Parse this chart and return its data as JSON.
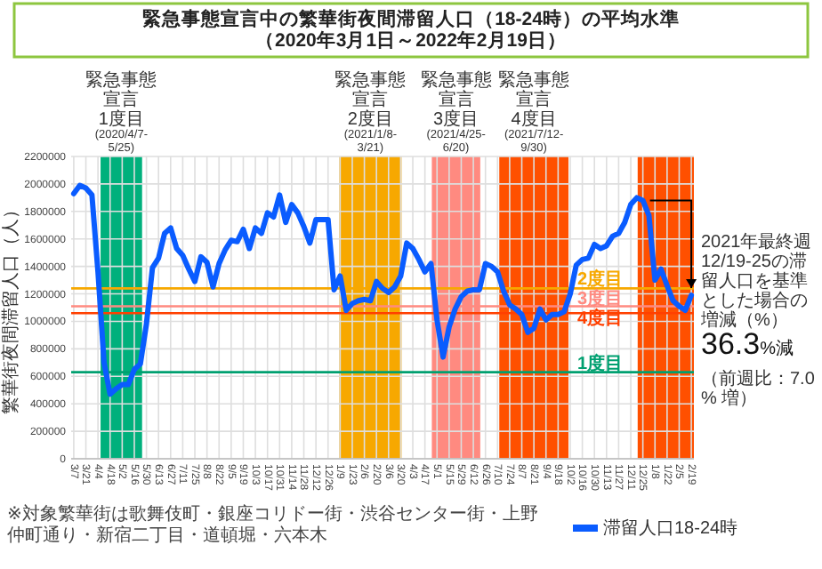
{
  "chart_data": {
    "type": "line",
    "title": "緊急事態宣言中の繁華街夜間滞留人口（18-24時）の平均水準（2020年3月1日～2022年2月19日）",
    "ylabel": "繁華街夜間滞留人口（人）",
    "x": [
      "2020-03-07",
      "2020-03-14",
      "2020-03-21",
      "2020-03-28",
      "2020-04-04",
      "2020-04-11",
      "2020-04-18",
      "2020-04-25",
      "2020-05-02",
      "2020-05-09",
      "2020-05-16",
      "2020-05-23",
      "2020-05-30",
      "2020-06-06",
      "2020-06-13",
      "2020-06-20",
      "2020-06-27",
      "2020-07-04",
      "2020-07-11",
      "2020-07-18",
      "2020-07-25",
      "2020-08-01",
      "2020-08-08",
      "2020-08-15",
      "2020-08-22",
      "2020-08-29",
      "2020-09-05",
      "2020-09-12",
      "2020-09-19",
      "2020-09-26",
      "2020-10-03",
      "2020-10-10",
      "2020-10-17",
      "2020-10-24",
      "2020-10-31",
      "2020-11-07",
      "2020-11-14",
      "2020-11-21",
      "2020-11-28",
      "2020-12-05",
      "2020-12-12",
      "2020-12-19",
      "2020-12-26",
      "2021-01-02",
      "2021-01-09",
      "2021-01-16",
      "2021-01-23",
      "2021-01-30",
      "2021-02-06",
      "2021-02-13",
      "2021-02-20",
      "2021-02-27",
      "2021-03-06",
      "2021-03-13",
      "2021-03-20",
      "2021-03-27",
      "2021-04-03",
      "2021-04-10",
      "2021-04-17",
      "2021-04-24",
      "2021-05-01",
      "2021-05-08",
      "2021-05-15",
      "2021-05-22",
      "2021-05-29",
      "2021-06-05",
      "2021-06-12",
      "2021-06-19",
      "2021-06-26",
      "2021-07-03",
      "2021-07-10",
      "2021-07-17",
      "2021-07-24",
      "2021-07-31",
      "2021-08-07",
      "2021-08-14",
      "2021-08-21",
      "2021-08-28",
      "2021-09-04",
      "2021-09-11",
      "2021-09-18",
      "2021-09-25",
      "2021-10-02",
      "2021-10-09",
      "2021-10-16",
      "2021-10-23",
      "2021-10-30",
      "2021-11-06",
      "2021-11-13",
      "2021-11-20",
      "2021-11-27",
      "2021-12-04",
      "2021-12-11",
      "2021-12-18",
      "2021-12-25",
      "2022-01-01",
      "2022-01-08",
      "2022-01-15",
      "2022-01-22",
      "2022-01-29",
      "2022-02-05",
      "2022-02-12",
      "2022-02-19"
    ],
    "series": [
      {
        "name": "滞留人口18-24時",
        "color": "#0a5cff",
        "values": [
          1930000,
          1990000,
          1970000,
          1920000,
          1360000,
          700000,
          470000,
          510000,
          540000,
          540000,
          650000,
          690000,
          980000,
          1390000,
          1460000,
          1640000,
          1680000,
          1530000,
          1480000,
          1380000,
          1290000,
          1470000,
          1430000,
          1250000,
          1420000,
          1520000,
          1590000,
          1580000,
          1670000,
          1530000,
          1680000,
          1640000,
          1790000,
          1760000,
          1920000,
          1720000,
          1850000,
          1790000,
          1690000,
          1570000,
          1740000,
          1740000,
          1740000,
          1230000,
          1330000,
          1080000,
          1130000,
          1150000,
          1160000,
          1150000,
          1290000,
          1240000,
          1210000,
          1250000,
          1330000,
          1570000,
          1530000,
          1450000,
          1360000,
          1420000,
          1010000,
          740000,
          960000,
          1090000,
          1180000,
          1220000,
          1230000,
          1230000,
          1420000,
          1400000,
          1360000,
          1220000,
          1120000,
          1090000,
          1050000,
          920000,
          950000,
          1090000,
          1010000,
          1050000,
          1050000,
          1070000,
          1200000,
          1410000,
          1450000,
          1460000,
          1560000,
          1530000,
          1550000,
          1620000,
          1640000,
          1720000,
          1850000,
          1900000,
          1880000,
          1770000,
          1300000,
          1380000,
          1260000,
          1150000,
          1110000,
          1080000,
          1190000
        ]
      }
    ],
    "xlim": [
      "2020-03-04",
      "2022-02-22"
    ],
    "ylim": [
      0,
      2200000
    ],
    "yticks": [
      0,
      200000,
      400000,
      600000,
      800000,
      1000000,
      1200000,
      1400000,
      1600000,
      1800000,
      2000000,
      2200000
    ],
    "xticks": [
      {
        "value": "2020-03-07",
        "label": "3/7"
      },
      {
        "value": "2020-03-21",
        "label": "3/21"
      },
      {
        "value": "2020-04-04",
        "label": "4/4"
      },
      {
        "value": "2020-04-18",
        "label": "4/18"
      },
      {
        "value": "2020-05-02",
        "label": "5/2"
      },
      {
        "value": "2020-05-16",
        "label": "5/16"
      },
      {
        "value": "2020-05-30",
        "label": "5/30"
      },
      {
        "value": "2020-06-13",
        "label": "6/13"
      },
      {
        "value": "2020-06-27",
        "label": "6/27"
      },
      {
        "value": "2020-07-11",
        "label": "7/11"
      },
      {
        "value": "2020-07-25",
        "label": "7/25"
      },
      {
        "value": "2020-08-08",
        "label": "8/8"
      },
      {
        "value": "2020-08-22",
        "label": "8/22"
      },
      {
        "value": "2020-09-05",
        "label": "9/5"
      },
      {
        "value": "2020-09-19",
        "label": "9/19"
      },
      {
        "value": "2020-10-03",
        "label": "10/3"
      },
      {
        "value": "2020-10-17",
        "label": "10/17"
      },
      {
        "value": "2020-10-31",
        "label": "10/31"
      },
      {
        "value": "2020-11-14",
        "label": "11/14"
      },
      {
        "value": "2020-11-28",
        "label": "11/28"
      },
      {
        "value": "2020-12-12",
        "label": "12/12"
      },
      {
        "value": "2020-12-26",
        "label": "12/26"
      },
      {
        "value": "2021-01-09",
        "label": "1/9"
      },
      {
        "value": "2021-01-23",
        "label": "1/23"
      },
      {
        "value": "2021-02-06",
        "label": "2/6"
      },
      {
        "value": "2021-02-20",
        "label": "2/20"
      },
      {
        "value": "2021-03-06",
        "label": "3/6"
      },
      {
        "value": "2021-03-20",
        "label": "3/20"
      },
      {
        "value": "2021-04-03",
        "label": "4/3"
      },
      {
        "value": "2021-04-17",
        "label": "4/17"
      },
      {
        "value": "2021-05-01",
        "label": "5/1"
      },
      {
        "value": "2021-05-15",
        "label": "5/15"
      },
      {
        "value": "2021-05-29",
        "label": "5/29"
      },
      {
        "value": "2021-06-12",
        "label": "6/12"
      },
      {
        "value": "2021-06-26",
        "label": "6/26"
      },
      {
        "value": "2021-07-10",
        "label": "7/10"
      },
      {
        "value": "2021-07-24",
        "label": "7/24"
      },
      {
        "value": "2021-08-07",
        "label": "8/7"
      },
      {
        "value": "2021-08-21",
        "label": "8/21"
      },
      {
        "value": "2021-09-04",
        "label": "9/4"
      },
      {
        "value": "2021-09-18",
        "label": "9/18"
      },
      {
        "value": "2021-10-02",
        "label": "10/2"
      },
      {
        "value": "2021-10-16",
        "label": "10/16"
      },
      {
        "value": "2021-10-30",
        "label": "10/30"
      },
      {
        "value": "2021-11-13",
        "label": "11/13"
      },
      {
        "value": "2021-11-27",
        "label": "11/27"
      },
      {
        "value": "2021-12-11",
        "label": "12/11"
      },
      {
        "value": "2021-12-25",
        "label": "12/25"
      },
      {
        "value": "2022-01-08",
        "label": "1/8"
      },
      {
        "value": "2022-01-22",
        "label": "1/22"
      },
      {
        "value": "2022-02-05",
        "label": "2/5"
      },
      {
        "value": "2022-02-19",
        "label": "2/19"
      }
    ],
    "bands": [
      {
        "axis": "x",
        "from": "2020-04-07",
        "to": "2020-05-25",
        "label": "緊急事態宣言\n1度目\n(2020/4/7-5/25)",
        "color": "#00b07c"
      },
      {
        "axis": "x",
        "from": "2021-01-08",
        "to": "2021-03-21",
        "label": "緊急事態宣言\n2度目\n(2021/1/8-3/21)",
        "color": "#f7a800"
      },
      {
        "axis": "x",
        "from": "2021-04-25",
        "to": "2021-06-20",
        "label": "緊急事態宣言\n3度目\n(2021/4/25-6/20)",
        "color": "#ff8a80"
      },
      {
        "axis": "x",
        "from": "2021-07-12",
        "to": "2021-09-30",
        "label": "緊急事態宣言\n4度目\n(2021/7/12-9/30)",
        "color": "#ff5000"
      },
      {
        "axis": "x",
        "from": "2021-12-19",
        "to": "2022-02-22",
        "label": null,
        "color": "#ff5000"
      }
    ],
    "ref_lines": [
      {
        "axis": "y",
        "value": 1240000,
        "label": "2度目",
        "color": "#f7a800"
      },
      {
        "axis": "y",
        "value": 1110000,
        "label": "3度目",
        "color": "#ff8a80"
      },
      {
        "axis": "y",
        "value": 1060000,
        "label": "4度目",
        "color": "#ff4000"
      },
      {
        "axis": "y",
        "value": 630000,
        "label": "1度目",
        "color": "#00a070"
      }
    ],
    "annotations": [
      "※対象繁華街は歌舞伎町・銀座コリドー街・渋谷センター街・上野仲町通り・新宿二丁目・道頓堀・六本木",
      {
        "text": "2021年最終週12/19-25の滞留人口を基準とした場合の増減（%）",
        "x": "2021-12-25",
        "y": 1880000
      },
      "36.3%減",
      "（前週比：7.0% 増）"
    ],
    "grid": true,
    "legend": "bottom"
  }
}
